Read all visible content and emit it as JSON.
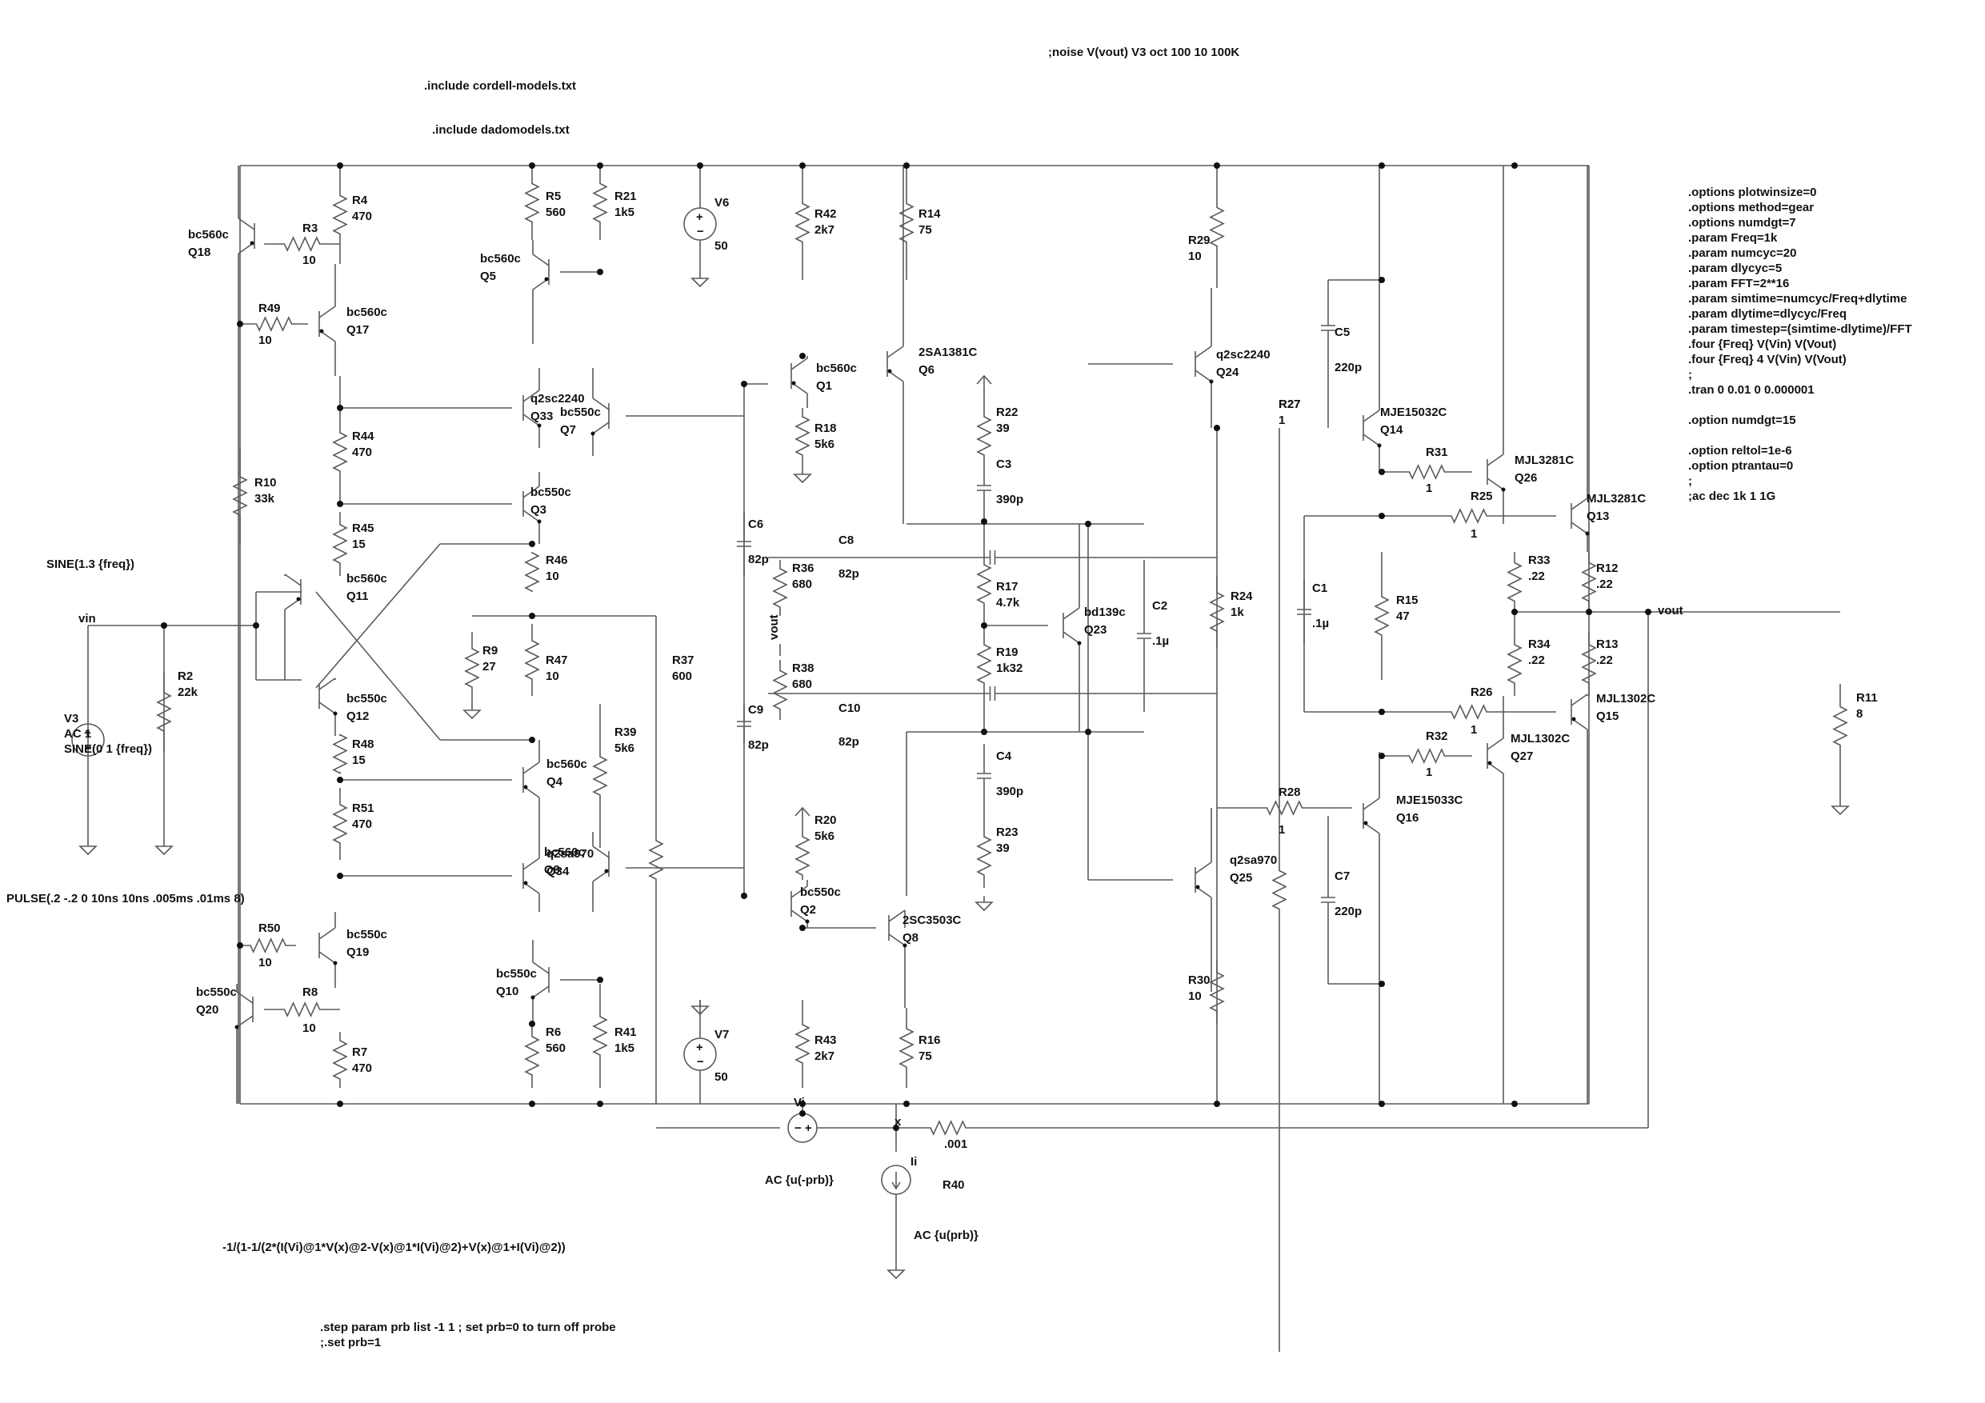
{
  "directives": {
    "noise": ";noise V(vout) V3 oct 100 10 100K",
    "include1": ".include cordell-models.txt",
    "include2": ".include dadomodels.txt",
    "options": [
      ".options plotwinsize=0",
      ".options method=gear",
      ".options numdgt=7",
      ".param Freq=1k",
      ".param numcyc=20",
      ".param dlycyc=5",
      ".param FFT=2**16",
      ".param simtime=numcyc/Freq+dlytime",
      ".param dlytime=dlycyc/Freq",
      ".param timestep=(simtime-dlytime)/FFT",
      ".four {Freq} V(Vin) V(Vout)",
      ".four {Freq} 4 V(Vin) V(Vout)",
      ";",
      ".tran 0 0.01 0 0.000001",
      "",
      ".option numdgt=15",
      "",
      ".option reltol=1e-6",
      ".option ptrantau=0",
      ";",
      ";ac dec 1k 1 1G"
    ],
    "sine_label": "SINE(1.3 {freq})",
    "pulse": "PULSE(.2 -.2 0 10ns 10ns .005ms .01ms 8)",
    "formula": "-1/(1-1/(2*(I(Vi)@1*V(x)@2-V(x)@1*I(Vi)@2)+V(x)@1+I(Vi)@2))",
    "step": ".step param prb list -1 1 ; set prb=0 to turn off probe",
    "set": ";.set prb=1"
  },
  "nets": {
    "vin": "vin",
    "vout": "vout",
    "vi": "Vi",
    "x": "x",
    "ii": "Ii"
  },
  "sources": {
    "V3": {
      "name": "V3",
      "l1": "AC 1",
      "l2": "SINE(0 1 {freq})"
    },
    "V6": {
      "name": "V6",
      "value": "50"
    },
    "V7": {
      "name": "V7",
      "value": "50"
    },
    "Vi_ac": "AC {u(-prb)}",
    "Ii_ac": "AC {u(prb)}",
    "R40": "R40"
  },
  "resistors": [
    {
      "ref": "R4",
      "val": "470"
    },
    {
      "ref": "R3",
      "val": "10"
    },
    {
      "ref": "R49",
      "val": "10"
    },
    {
      "ref": "R10",
      "val": "33k"
    },
    {
      "ref": "R44",
      "val": "470"
    },
    {
      "ref": "R45",
      "val": "15"
    },
    {
      "ref": "R5",
      "val": "560"
    },
    {
      "ref": "R21",
      "val": "1k5"
    },
    {
      "ref": "R46",
      "val": "10"
    },
    {
      "ref": "R9",
      "val": "27"
    },
    {
      "ref": "R47",
      "val": "10"
    },
    {
      "ref": "R37",
      "val": "600"
    },
    {
      "ref": "R48",
      "val": "15"
    },
    {
      "ref": "R51",
      "val": "470"
    },
    {
      "ref": "R39",
      "val": "5k6"
    },
    {
      "ref": "R50",
      "val": "10"
    },
    {
      "ref": "R8",
      "val": "10"
    },
    {
      "ref": "R7",
      "val": "470"
    },
    {
      "ref": "R6",
      "val": "560"
    },
    {
      "ref": "R41",
      "val": "1k5"
    },
    {
      "ref": "R2",
      "val": "22k"
    },
    {
      "ref": "R42",
      "val": "2k7"
    },
    {
      "ref": "R18",
      "val": "5k6"
    },
    {
      "ref": "R36",
      "val": "680"
    },
    {
      "ref": "R38",
      "val": "680"
    },
    {
      "ref": "R20",
      "val": "5k6"
    },
    {
      "ref": "R43",
      "val": "2k7"
    },
    {
      "ref": "R14",
      "val": "75"
    },
    {
      "ref": "R16",
      "val": "75"
    },
    {
      "ref": "R22",
      "val": "39"
    },
    {
      "ref": "R17",
      "val": "4.7k"
    },
    {
      "ref": "R19",
      "val": "1k32"
    },
    {
      "ref": "R23",
      "val": "39"
    },
    {
      "ref": "R29",
      "val": "10"
    },
    {
      "ref": "R24",
      "val": "1k"
    },
    {
      "ref": "R30",
      "val": "10"
    },
    {
      "ref": "R27",
      "val": "1"
    },
    {
      "ref": "R28",
      "val": "1"
    },
    {
      "ref": "R15",
      "val": "47"
    },
    {
      "ref": "R31",
      "val": "1"
    },
    {
      "ref": "R25",
      "val": "1"
    },
    {
      "ref": "R26",
      "val": "1"
    },
    {
      "ref": "R32",
      "val": "1"
    },
    {
      "ref": "R33",
      "val": ".22"
    },
    {
      "ref": "R34",
      "val": ".22"
    },
    {
      "ref": "R12",
      "val": ".22"
    },
    {
      "ref": "R13",
      "val": ".22"
    },
    {
      "ref": "R11",
      "val": "8"
    },
    {
      "ref": "R40v",
      "val": ".001"
    }
  ],
  "capacitors": [
    {
      "ref": "C6",
      "val": "82p"
    },
    {
      "ref": "C8",
      "val": "82p"
    },
    {
      "ref": "C9",
      "val": "82p"
    },
    {
      "ref": "C10",
      "val": "82p"
    },
    {
      "ref": "C3",
      "val": "390p"
    },
    {
      "ref": "C4",
      "val": "390p"
    },
    {
      "ref": "C2",
      "val": ".1µ"
    },
    {
      "ref": "C5",
      "val": "220p"
    },
    {
      "ref": "C7",
      "val": "220p"
    },
    {
      "ref": "C1",
      "val": ".1µ"
    }
  ],
  "transistors": [
    {
      "ref": "Q18",
      "model": "bc560c"
    },
    {
      "ref": "Q17",
      "model": "bc560c"
    },
    {
      "ref": "Q5",
      "model": "bc560c"
    },
    {
      "ref": "Q33",
      "model": "q2sc2240"
    },
    {
      "ref": "Q7",
      "model": "bc550c"
    },
    {
      "ref": "Q3",
      "model": "bc550c"
    },
    {
      "ref": "Q11",
      "model": "bc560c"
    },
    {
      "ref": "Q12",
      "model": "bc550c"
    },
    {
      "ref": "Q4",
      "model": "bc560c"
    },
    {
      "ref": "Q34",
      "model": "q2sa970"
    },
    {
      "ref": "Q9",
      "model": "bc560c"
    },
    {
      "ref": "Q19",
      "model": "bc550c"
    },
    {
      "ref": "Q20",
      "model": "bc550c"
    },
    {
      "ref": "Q10",
      "model": "bc550c"
    },
    {
      "ref": "Q1",
      "model": "bc560c"
    },
    {
      "ref": "Q6",
      "model": "2SA1381C"
    },
    {
      "ref": "Q2",
      "model": "bc550c"
    },
    {
      "ref": "Q8",
      "model": "2SC3503C"
    },
    {
      "ref": "Q23",
      "model": "bd139c"
    },
    {
      "ref": "Q24",
      "model": "q2sc2240"
    },
    {
      "ref": "Q25",
      "model": "q2sa970"
    },
    {
      "ref": "Q14",
      "model": "MJE15032C"
    },
    {
      "ref": "Q16",
      "model": "MJE15033C"
    },
    {
      "ref": "Q26",
      "model": "MJL3281C"
    },
    {
      "ref": "Q13",
      "model": "MJL3281C"
    },
    {
      "ref": "Q27",
      "model": "MJL1302C"
    },
    {
      "ref": "Q15",
      "model": "MJL1302C"
    }
  ]
}
